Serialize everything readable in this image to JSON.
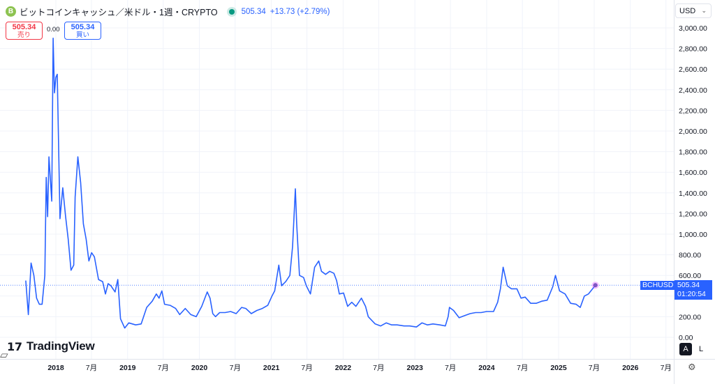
{
  "header": {
    "coin_icon_letter": "B",
    "title": "ビットコインキャッシュ／米ドル・1週・CRYPTO",
    "price": "505.34",
    "change": "+13.73 (+2.79%)"
  },
  "trade": {
    "sell_price": "505.34",
    "sell_label": "売り",
    "spread": "0.00",
    "buy_price": "505.34",
    "buy_label": "買い"
  },
  "currency": "USD",
  "price_label": {
    "symbol": "BCHUSD",
    "price": "505.34",
    "countdown": "01:20:54"
  },
  "logo": {
    "text": "TradingView",
    "mark": "17"
  },
  "scale_buttons": {
    "auto": "A",
    "log": "L"
  },
  "colors": {
    "line": "#2962ff",
    "accent": "#2962ff",
    "sell": "#f23645",
    "market_open": "#089981"
  },
  "icons": [
    "bitcoin-cash-icon",
    "market-status-icon",
    "chevron-down-icon",
    "tradingview-logo-icon",
    "settings-icon"
  ],
  "chart_data": {
    "type": "line",
    "title": "ビットコインキャッシュ／米ドル・1週・CRYPTO",
    "ylim": [
      0,
      3100
    ],
    "yticks": [
      0,
      200,
      400,
      600,
      800,
      1000,
      1200,
      1400,
      1600,
      1800,
      2000,
      2200,
      2400,
      2600,
      2800,
      3000
    ],
    "ytick_labels": [
      "0.00",
      "200.00",
      "400.00",
      "600.00",
      "800.00",
      "1,000.00",
      "1,200.00",
      "1,400.00",
      "1,600.00",
      "1,800.00",
      "2,000.00",
      "2,200.00",
      "2,400.00",
      "2,600.00",
      "2,800.00",
      "3,000.00"
    ],
    "xlim": [
      "2017-08-01",
      "2026-12-31"
    ],
    "xticks": [
      {
        "date": "2018-01-01",
        "label": "2018",
        "bold": true
      },
      {
        "date": "2018-07-01",
        "label": "7月",
        "bold": false
      },
      {
        "date": "2019-01-01",
        "label": "2019",
        "bold": true
      },
      {
        "date": "2019-07-01",
        "label": "7月",
        "bold": false
      },
      {
        "date": "2020-01-01",
        "label": "2020",
        "bold": true
      },
      {
        "date": "2020-07-01",
        "label": "7月",
        "bold": false
      },
      {
        "date": "2021-01-01",
        "label": "2021",
        "bold": true
      },
      {
        "date": "2021-07-01",
        "label": "7月",
        "bold": false
      },
      {
        "date": "2022-01-01",
        "label": "2022",
        "bold": true
      },
      {
        "date": "2022-07-01",
        "label": "7月",
        "bold": false
      },
      {
        "date": "2023-01-01",
        "label": "2023",
        "bold": true
      },
      {
        "date": "2023-07-01",
        "label": "7月",
        "bold": false
      },
      {
        "date": "2024-01-01",
        "label": "2024",
        "bold": true
      },
      {
        "date": "2024-07-01",
        "label": "7月",
        "bold": false
      },
      {
        "date": "2025-01-01",
        "label": "2025",
        "bold": true
      },
      {
        "date": "2025-07-01",
        "label": "7月",
        "bold": false
      },
      {
        "date": "2026-01-01",
        "label": "2026",
        "bold": true
      },
      {
        "date": "2026-07-01",
        "label": "7月",
        "bold": false
      }
    ],
    "grid": true,
    "last_value": 505.34,
    "series": [
      {
        "points": [
          [
            "2017-08-01",
            550
          ],
          [
            "2017-08-14",
            220
          ],
          [
            "2017-08-28",
            720
          ],
          [
            "2017-09-11",
            600
          ],
          [
            "2017-09-25",
            380
          ],
          [
            "2017-10-09",
            320
          ],
          [
            "2017-10-23",
            320
          ],
          [
            "2017-11-06",
            600
          ],
          [
            "2017-11-13",
            1550
          ],
          [
            "2017-11-20",
            1170
          ],
          [
            "2017-11-27",
            1750
          ],
          [
            "2017-12-11",
            1320
          ],
          [
            "2017-12-18",
            2900
          ],
          [
            "2017-12-25",
            2370
          ],
          [
            "2018-01-01",
            2520
          ],
          [
            "2018-01-08",
            2550
          ],
          [
            "2018-01-22",
            1150
          ],
          [
            "2018-02-05",
            1450
          ],
          [
            "2018-02-19",
            1180
          ],
          [
            "2018-03-05",
            950
          ],
          [
            "2018-03-19",
            650
          ],
          [
            "2018-04-02",
            700
          ],
          [
            "2018-04-09",
            1360
          ],
          [
            "2018-04-23",
            1750
          ],
          [
            "2018-05-07",
            1500
          ],
          [
            "2018-05-21",
            1100
          ],
          [
            "2018-06-04",
            950
          ],
          [
            "2018-06-18",
            740
          ],
          [
            "2018-07-02",
            820
          ],
          [
            "2018-07-16",
            780
          ],
          [
            "2018-08-06",
            560
          ],
          [
            "2018-08-27",
            540
          ],
          [
            "2018-09-10",
            420
          ],
          [
            "2018-09-24",
            520
          ],
          [
            "2018-10-08",
            500
          ],
          [
            "2018-10-29",
            440
          ],
          [
            "2018-11-12",
            560
          ],
          [
            "2018-11-26",
            180
          ],
          [
            "2018-12-17",
            90
          ],
          [
            "2019-01-07",
            140
          ],
          [
            "2019-02-11",
            120
          ],
          [
            "2019-03-11",
            130
          ],
          [
            "2019-04-08",
            290
          ],
          [
            "2019-05-06",
            350
          ],
          [
            "2019-05-27",
            420
          ],
          [
            "2019-06-10",
            380
          ],
          [
            "2019-06-24",
            450
          ],
          [
            "2019-07-08",
            320
          ],
          [
            "2019-08-05",
            310
          ],
          [
            "2019-09-02",
            280
          ],
          [
            "2019-09-23",
            220
          ],
          [
            "2019-10-21",
            280
          ],
          [
            "2019-11-18",
            220
          ],
          [
            "2019-12-16",
            200
          ],
          [
            "2020-01-13",
            300
          ],
          [
            "2020-02-10",
            440
          ],
          [
            "2020-02-24",
            380
          ],
          [
            "2020-03-09",
            230
          ],
          [
            "2020-03-23",
            200
          ],
          [
            "2020-04-13",
            240
          ],
          [
            "2020-05-11",
            240
          ],
          [
            "2020-06-08",
            250
          ],
          [
            "2020-07-06",
            230
          ],
          [
            "2020-08-03",
            290
          ],
          [
            "2020-08-24",
            280
          ],
          [
            "2020-09-21",
            230
          ],
          [
            "2020-10-19",
            260
          ],
          [
            "2020-11-16",
            280
          ],
          [
            "2020-12-14",
            310
          ],
          [
            "2021-01-04",
            400
          ],
          [
            "2021-01-18",
            450
          ],
          [
            "2021-02-08",
            700
          ],
          [
            "2021-02-22",
            500
          ],
          [
            "2021-03-15",
            540
          ],
          [
            "2021-04-05",
            600
          ],
          [
            "2021-04-19",
            880
          ],
          [
            "2021-05-03",
            1440
          ],
          [
            "2021-05-10",
            1100
          ],
          [
            "2021-05-24",
            600
          ],
          [
            "2021-06-14",
            580
          ],
          [
            "2021-06-28",
            500
          ],
          [
            "2021-07-19",
            420
          ],
          [
            "2021-08-09",
            680
          ],
          [
            "2021-08-30",
            740
          ],
          [
            "2021-09-13",
            640
          ],
          [
            "2021-10-04",
            610
          ],
          [
            "2021-10-25",
            640
          ],
          [
            "2021-11-15",
            620
          ],
          [
            "2021-11-29",
            550
          ],
          [
            "2021-12-13",
            420
          ],
          [
            "2022-01-03",
            430
          ],
          [
            "2022-01-24",
            300
          ],
          [
            "2022-02-14",
            340
          ],
          [
            "2022-03-07",
            300
          ],
          [
            "2022-04-04",
            380
          ],
          [
            "2022-04-25",
            300
          ],
          [
            "2022-05-09",
            200
          ],
          [
            "2022-06-13",
            130
          ],
          [
            "2022-07-11",
            110
          ],
          [
            "2022-08-08",
            140
          ],
          [
            "2022-09-05",
            120
          ],
          [
            "2022-10-03",
            120
          ],
          [
            "2022-11-07",
            110
          ],
          [
            "2022-12-05",
            110
          ],
          [
            "2023-01-09",
            100
          ],
          [
            "2023-02-06",
            140
          ],
          [
            "2023-03-06",
            120
          ],
          [
            "2023-04-03",
            130
          ],
          [
            "2023-05-08",
            120
          ],
          [
            "2023-06-05",
            110
          ],
          [
            "2023-06-19",
            200
          ],
          [
            "2023-06-26",
            290
          ],
          [
            "2023-07-17",
            260
          ],
          [
            "2023-08-14",
            190
          ],
          [
            "2023-09-11",
            210
          ],
          [
            "2023-10-09",
            230
          ],
          [
            "2023-11-06",
            240
          ],
          [
            "2023-12-04",
            240
          ],
          [
            "2024-01-01",
            250
          ],
          [
            "2024-02-05",
            250
          ],
          [
            "2024-02-26",
            340
          ],
          [
            "2024-03-11",
            470
          ],
          [
            "2024-03-25",
            680
          ],
          [
            "2024-04-15",
            500
          ],
          [
            "2024-05-06",
            470
          ],
          [
            "2024-06-03",
            470
          ],
          [
            "2024-06-24",
            380
          ],
          [
            "2024-07-15",
            390
          ],
          [
            "2024-08-12",
            330
          ],
          [
            "2024-09-09",
            330
          ],
          [
            "2024-10-07",
            350
          ],
          [
            "2024-11-04",
            360
          ],
          [
            "2024-12-02",
            490
          ],
          [
            "2024-12-16",
            600
          ],
          [
            "2025-01-06",
            450
          ],
          [
            "2025-02-03",
            420
          ],
          [
            "2025-03-03",
            330
          ],
          [
            "2025-03-31",
            320
          ],
          [
            "2025-04-21",
            290
          ],
          [
            "2025-05-12",
            400
          ],
          [
            "2025-06-02",
            420
          ],
          [
            "2025-06-23",
            470
          ],
          [
            "2025-07-07",
            505.34
          ]
        ]
      }
    ]
  }
}
